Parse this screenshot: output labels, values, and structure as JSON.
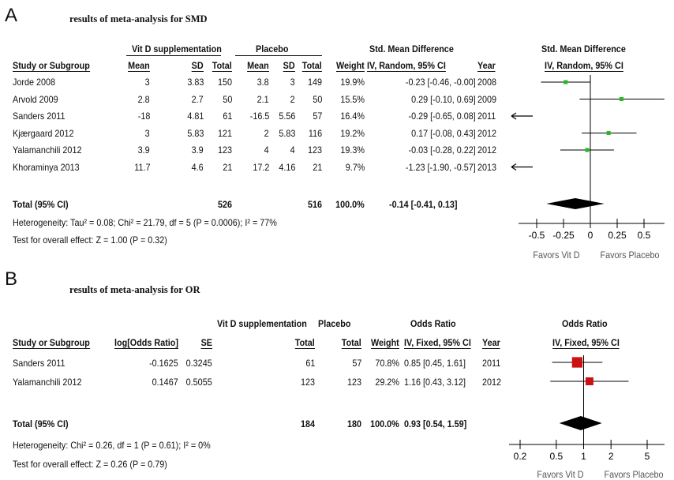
{
  "panelA": {
    "letter": "A",
    "title": "results of meta-analysis for SMD",
    "group_headers": {
      "exp": "Vit D supplementation",
      "ctl": "Placebo",
      "effect": "Std. Mean Difference",
      "plot": "Std. Mean Difference"
    },
    "col_headers": [
      "Study or Subgroup",
      "Mean",
      "SD",
      "Total",
      "Mean",
      "SD",
      "Total",
      "Weight",
      "IV, Random, 95% CI",
      "Year",
      "IV, Random, 95% CI"
    ],
    "rows": [
      [
        "Jorde 2008",
        "3",
        "3.83",
        "150",
        "3.8",
        "3",
        "149",
        "19.9%",
        "-0.23 [-0.46, -0.00]",
        "2008"
      ],
      [
        "Arvold 2009",
        "2.8",
        "2.7",
        "50",
        "2.1",
        "2",
        "50",
        "15.5%",
        "0.29 [-0.10, 0.69]",
        "2009"
      ],
      [
        "Sanders 2011",
        "-18",
        "4.81",
        "61",
        "-16.5",
        "5.56",
        "57",
        "16.4%",
        "-0.29 [-0.65, 0.08]",
        "2011"
      ],
      [
        "Kjærgaard 2012",
        "3",
        "5.83",
        "121",
        "2",
        "5.83",
        "116",
        "19.2%",
        "0.17 [-0.08, 0.43]",
        "2012"
      ],
      [
        "Yalamanchili 2012",
        "3.9",
        "3.9",
        "123",
        "4",
        "4",
        "123",
        "19.3%",
        "-0.03 [-0.28, 0.22]",
        "2012"
      ],
      [
        "Khoraminya 2013",
        "11.7",
        "4.6",
        "21",
        "17.2",
        "4.16",
        "21",
        "9.7%",
        "-1.23 [-1.90, -0.57]",
        "2013"
      ]
    ],
    "total": {
      "label": "Total (95% CI)",
      "exp_total": "526",
      "ctl_total": "516",
      "weight": "100.0%",
      "ci": "-0.14 [-0.41, 0.13]"
    },
    "heterogeneity": "Heterogeneity: Tau² = 0.08; Chi² = 21.79, df = 5 (P = 0.0006); I² = 77%",
    "overall": "Test for overall effect: Z = 1.00 (P = 0.32)",
    "ticks": [
      "-0.5",
      "-0.25",
      "0",
      "0.25",
      "0.5"
    ],
    "favors_left": "Favors Vit D",
    "favors_right": "Favors Placebo"
  },
  "panelB": {
    "letter": "B",
    "title": "results of meta-analysis for OR",
    "group_headers": {
      "exp": "Vit D supplementation",
      "ctl": "Placebo",
      "effect": "Odds Ratio",
      "plot": "Odds Ratio"
    },
    "col_headers": [
      "Study or Subgroup",
      "log[Odds Ratio]",
      "SE",
      "Total",
      "Total",
      "Weight",
      "IV, Fixed, 95% CI",
      "Year",
      "IV, Fixed, 95% CI"
    ],
    "rows": [
      [
        "Sanders 2011",
        "-0.1625",
        "0.3245",
        "61",
        "57",
        "70.8%",
        "0.85 [0.45, 1.61]",
        "2011"
      ],
      [
        "Yalamanchili 2012",
        "0.1467",
        "0.5055",
        "123",
        "123",
        "29.2%",
        "1.16 [0.43, 3.12]",
        "2012"
      ]
    ],
    "total": {
      "label": "Total (95% CI)",
      "exp_total": "184",
      "ctl_total": "180",
      "weight": "100.0%",
      "ci": "0.93 [0.54, 1.59]"
    },
    "heterogeneity": "Heterogeneity: Chi² = 0.26, df = 1 (P = 0.61); I² = 0%",
    "overall": "Test for overall effect: Z = 0.26 (P = 0.79)",
    "ticks": [
      "0.2",
      "0.5",
      "1",
      "2",
      "5"
    ],
    "favors_left": "Favors Vit D",
    "favors_right": "Favors Placebo"
  },
  "chart_data": [
    {
      "type": "forest",
      "title": "results of meta-analysis for SMD",
      "measure": "Std. Mean Difference, IV, Random, 95% CI",
      "xlim": [
        -0.5,
        0.5
      ],
      "xticks": [
        -0.5,
        -0.25,
        0,
        0.25,
        0.5
      ],
      "studies": [
        {
          "name": "Jorde 2008",
          "est": -0.23,
          "lo": -0.46,
          "hi": -0.0,
          "weight": 19.9
        },
        {
          "name": "Arvold 2009",
          "est": 0.29,
          "lo": -0.1,
          "hi": 0.69,
          "weight": 15.5
        },
        {
          "name": "Sanders 2011",
          "est": -0.29,
          "lo": -0.65,
          "hi": 0.08,
          "weight": 16.4
        },
        {
          "name": "Kjærgaard 2012",
          "est": 0.17,
          "lo": -0.08,
          "hi": 0.43,
          "weight": 19.2
        },
        {
          "name": "Yalamanchili 2012",
          "est": -0.03,
          "lo": -0.28,
          "hi": 0.22,
          "weight": 19.3
        },
        {
          "name": "Khoraminya 2013",
          "est": -1.23,
          "lo": -1.9,
          "hi": -0.57,
          "weight": 9.7
        }
      ],
      "pooled": {
        "est": -0.14,
        "lo": -0.41,
        "hi": 0.13
      },
      "marker_color": "#22bb22",
      "diamond_color": "#000000"
    },
    {
      "type": "forest",
      "title": "results of meta-analysis for OR",
      "measure": "Odds Ratio, IV, Fixed, 95% CI",
      "scale": "log",
      "xlim": [
        0.2,
        5
      ],
      "xticks": [
        0.2,
        0.5,
        1,
        2,
        5
      ],
      "studies": [
        {
          "name": "Sanders 2011",
          "est": 0.85,
          "lo": 0.45,
          "hi": 1.61,
          "weight": 70.8
        },
        {
          "name": "Yalamanchili 2012",
          "est": 1.16,
          "lo": 0.43,
          "hi": 3.12,
          "weight": 29.2
        }
      ],
      "pooled": {
        "est": 0.93,
        "lo": 0.54,
        "hi": 1.59
      },
      "marker_color": "#cc1111",
      "diamond_color": "#000000"
    }
  ]
}
